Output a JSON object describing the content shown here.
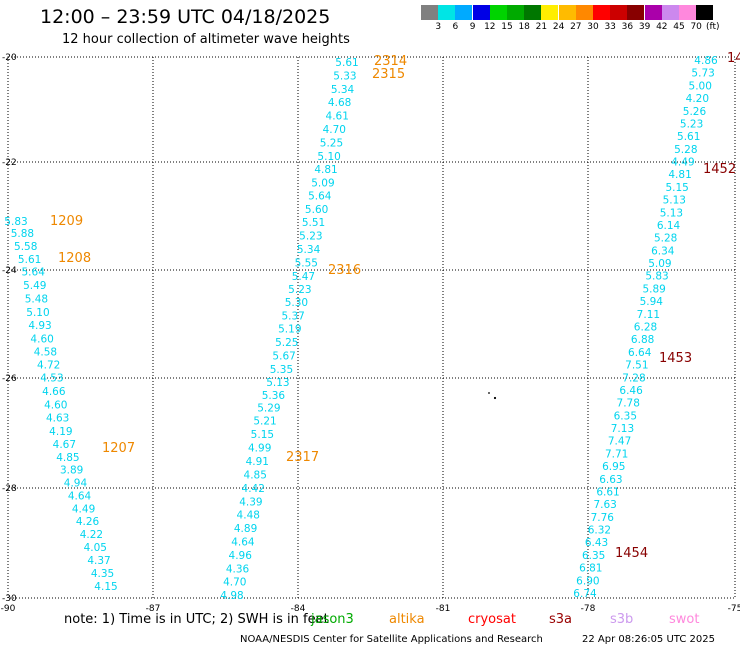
{
  "title": "12:00 – 23:59 UTC 04/18/2025",
  "subtitle": "12 hour collection of altimeter wave heights",
  "scale": {
    "labels": [
      "3",
      "6",
      "9",
      "12",
      "15",
      "18",
      "21",
      "24",
      "27",
      "30",
      "33",
      "36",
      "39",
      "42",
      "45",
      "70"
    ],
    "unit": "(ft)",
    "colors": [
      "#808080",
      "#00e5e5",
      "#00aaff",
      "#0000e6",
      "#00d400",
      "#00aa00",
      "#007700",
      "#ffee00",
      "#ffbb00",
      "#ff8800",
      "#ff0000",
      "#cc0000",
      "#880000",
      "#aa00aa",
      "#cc88ee",
      "#ff88dd",
      "#000000"
    ]
  },
  "axes": {
    "lat_labels": [
      "-20",
      "-22",
      "-24",
      "-26",
      "-28",
      "-30"
    ],
    "lon_labels": [
      "-90",
      "-87",
      "-84",
      "-81",
      "-78",
      "-75"
    ]
  },
  "tracks": [
    {
      "values": [
        "5.83",
        "5.88",
        "5.58",
        "5.61",
        "5.64",
        "5.49",
        "5.48",
        "5.10",
        "4.93",
        "4.60",
        "4.58",
        "4.72",
        "4.53",
        "4.66",
        "4.60",
        "4.63",
        "4.19",
        "4.67",
        "4.85",
        "3.89",
        "4.94",
        "4.64",
        "4.49",
        "4.26",
        "4.22",
        "4.05",
        "4.37",
        "4.35",
        "4.15"
      ]
    },
    {
      "values": [
        "5.61",
        "5.33",
        "5.34",
        "4.68",
        "4.61",
        "4.70",
        "5.25",
        "5.10",
        "4.81",
        "5.09",
        "5.64",
        "5.60",
        "5.51",
        "5.23",
        "5.34",
        "5.55",
        "5.47",
        "5.23",
        "5.30",
        "5.37",
        "5.19",
        "5.25",
        "5.67",
        "5.35",
        "5.13",
        "5.36",
        "5.29",
        "5.21",
        "5.15",
        "4.99",
        "4.91",
        "4.85",
        "4.42",
        "4.39",
        "4.48",
        "4.89",
        "4.64",
        "4.96",
        "4.36",
        "4.70",
        "4.98"
      ]
    },
    {
      "values": [
        "4.86",
        "5.73",
        "5.00",
        "4.20",
        "5.26",
        "5.23",
        "5.61",
        "5.28",
        "4.49",
        "4.81",
        "5.15",
        "5.13",
        "5.13",
        "6.14",
        "5.28",
        "6.34",
        "5.09",
        "5.83",
        "5.89",
        "5.94",
        "7.11",
        "6.28",
        "6.88",
        "6.64",
        "7.51",
        "7.28",
        "6.46",
        "7.78",
        "6.35",
        "7.13",
        "7.47",
        "7.71",
        "6.95",
        "6.63",
        "6.61",
        "7.63",
        "7.76",
        "6.32",
        "6.43",
        "6.35",
        "6.81",
        "6.90",
        "6.74"
      ]
    }
  ],
  "time_labels": [
    {
      "text": "2314",
      "color": "#ee8800"
    },
    {
      "text": "2315",
      "color": "#ee8800"
    },
    {
      "text": "2316",
      "color": "#ee8800"
    },
    {
      "text": "2317",
      "color": "#ee8800"
    },
    {
      "text": "1209",
      "color": "#ee8800"
    },
    {
      "text": "1208",
      "color": "#ee8800"
    },
    {
      "text": "1207",
      "color": "#ee8800"
    },
    {
      "text": "14",
      "color": "#880000"
    },
    {
      "text": "1452",
      "color": "#880000"
    },
    {
      "text": "1453",
      "color": "#880000"
    },
    {
      "text": "1454",
      "color": "#880000"
    }
  ],
  "note": {
    "text": "note:  1) Time is in UTC;  2) SWH is in feet",
    "overlay": "jason3",
    "overlay_color": "#00aa00"
  },
  "satellites": [
    {
      "name": "altika",
      "color": "#ee8800"
    },
    {
      "name": "cryosat",
      "color": "#ff0000"
    },
    {
      "name": "s3a",
      "color": "#990000"
    },
    {
      "name": "s3b",
      "color": "#cc99ee"
    },
    {
      "name": "swot",
      "color": "#ff88dd"
    }
  ],
  "credit": "NOAA/NESDIS Center for Satellite Applications and Research",
  "credit_date": "22 Apr 08:26:05 UTC 2025"
}
